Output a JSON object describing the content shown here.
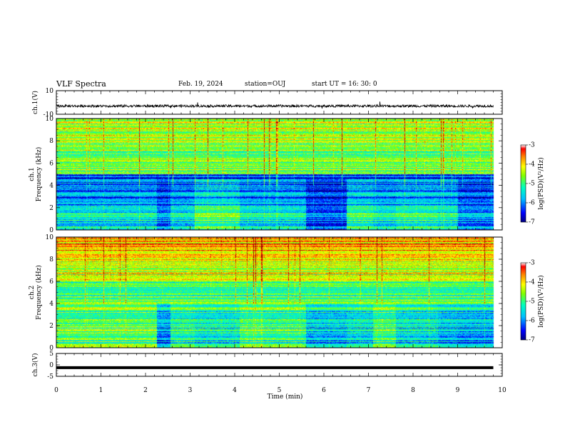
{
  "header": {
    "title": "VLF Spectra",
    "date": "Feb. 19, 2024",
    "station": "station=OUJ",
    "start": "start UT = 16: 30: 0"
  },
  "colors": {
    "colormap": [
      "#000080",
      "#0000ff",
      "#00a0ff",
      "#00ffff",
      "#40ff80",
      "#a0ff00",
      "#ffff00",
      "#ff8000",
      "#ff0000",
      "#a00000"
    ]
  },
  "chart_data": [
    {
      "type": "line",
      "name": "ch1-waveform",
      "ylabel": "ch.1(V)",
      "ylim": [
        -10,
        10
      ],
      "yticks": [
        "10",
        "-10"
      ],
      "xlim": [
        0,
        10
      ],
      "baseline": -3,
      "noise_amplitude": 1.5
    },
    {
      "type": "heatmap",
      "name": "ch1-spectrogram",
      "ylabel_top": "ch.1",
      "ylabel": "Frequency (kHz)",
      "ylim": [
        0,
        10
      ],
      "yticks": [
        "0",
        "2",
        "4",
        "6",
        "8",
        "10"
      ],
      "xlim": [
        0,
        10
      ],
      "colorbar": {
        "label": "log(PSD)(V²/Hz)",
        "ticks": [
          "-3",
          "-4",
          "-5",
          "-6",
          "-7"
        ],
        "range": [
          -7,
          -3
        ]
      }
    },
    {
      "type": "heatmap",
      "name": "ch2-spectrogram",
      "ylabel_top": "ch.2",
      "ylabel": "Frequency (kHz)",
      "ylim": [
        0,
        10
      ],
      "yticks": [
        "0",
        "2",
        "4",
        "6",
        "8",
        "10"
      ],
      "xlim": [
        0,
        10
      ],
      "colorbar": {
        "label": "log(PSD)(V²/Hz)",
        "ticks": [
          "-3",
          "-4",
          "-5",
          "-6",
          "-7"
        ],
        "range": [
          -7,
          -3
        ]
      }
    },
    {
      "type": "line",
      "name": "ch3-waveform",
      "ylabel": "ch.3(V)",
      "ylim": [
        -5,
        5
      ],
      "yticks": [
        "5",
        "0",
        "-5"
      ],
      "xlim": [
        0,
        10
      ],
      "baseline": -1.2
    }
  ],
  "xaxis": {
    "label": "Time (min)",
    "ticks": [
      "0",
      "1",
      "2",
      "3",
      "4",
      "5",
      "6",
      "7",
      "8",
      "9",
      "10"
    ],
    "data_end": 9.8
  }
}
